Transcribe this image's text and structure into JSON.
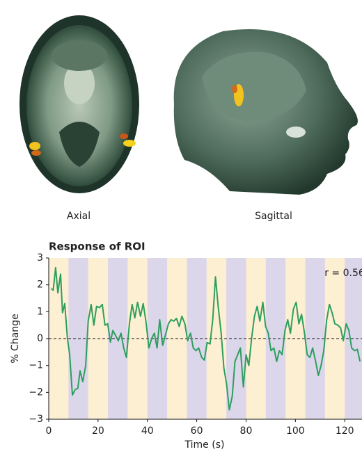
{
  "images": [
    {
      "label": "Axial"
    },
    {
      "label": "Sagittal"
    }
  ],
  "chart_data": {
    "type": "line",
    "title": "Response of ROI",
    "xlabel": "Time (s)",
    "ylabel": "% Change",
    "annotation": "r = 0.56",
    "xlim": [
      0,
      127
    ],
    "xticks": [
      0,
      20,
      40,
      60,
      80,
      100,
      120
    ],
    "ylim": [
      -3,
      3
    ],
    "yticks": [
      {
        "value": -3,
        "label": "−3"
      },
      {
        "value": -2,
        "label": "−2"
      },
      {
        "value": -1,
        "label": "−1"
      },
      0,
      1,
      2,
      3
    ],
    "reference_line": 0,
    "background_color": "#fcefd2",
    "blocks": [
      [
        8,
        16
      ],
      [
        24,
        32
      ],
      [
        40,
        48
      ],
      [
        56,
        64
      ],
      [
        72,
        80
      ],
      [
        88,
        96
      ],
      [
        104,
        112
      ],
      [
        120,
        127
      ]
    ],
    "block_color": "#dcd6ea",
    "series": [
      {
        "name": "ROI",
        "color": "#2e9e5e",
        "x": [
          1,
          1.8,
          2.8,
          3.7,
          4.8,
          5.6,
          6.5,
          7.6,
          8.5,
          9.6,
          10.7,
          11.8,
          12.7,
          13.8,
          15,
          16,
          17.2,
          18.3,
          19.4,
          20.6,
          21.7,
          22.8,
          23.9,
          25,
          26,
          27,
          28.2,
          29.3,
          30.4,
          31.5,
          32.7,
          33.8,
          34.9,
          36,
          37.2,
          38.3,
          39.4,
          40.6,
          41.7,
          42.8,
          43.9,
          45,
          46.2,
          47.3,
          48.5,
          49.6,
          50.7,
          51.8,
          52.9,
          54,
          55.2,
          56.3,
          57.5,
          58.6,
          59.7,
          60.8,
          62,
          63.1,
          64.2,
          65.4,
          66.5,
          67.6,
          68.7,
          69.9,
          71,
          72.1,
          73.2,
          74.4,
          75.5,
          76.6,
          77.7,
          78.9,
          80,
          81.1,
          82.3,
          83.4,
          84.5,
          85.6,
          86.8,
          87.9,
          89,
          90.1,
          91.3,
          92.4,
          93.5,
          94.6,
          95.8,
          96.9,
          98,
          99.2,
          100.3,
          101.4,
          102.5,
          103.7,
          104.8,
          105.9,
          107,
          108.2,
          109.3,
          110.4,
          111.5,
          112.7,
          113.8,
          114.9,
          116,
          117.2,
          118.3,
          119.4,
          120.6,
          121.7,
          122.8,
          124,
          125.1,
          126.2
        ],
        "values": [
          1.86,
          1.8,
          2.64,
          1.7,
          2.4,
          0.96,
          1.3,
          0,
          -0.6,
          -2.1,
          -1.9,
          -1.85,
          -1.2,
          -1.6,
          -1.0,
          0.65,
          1.27,
          0.5,
          1.2,
          1.15,
          1.27,
          0.5,
          0.55,
          -0.13,
          0.3,
          0.13,
          -0.08,
          0.2,
          -0.35,
          -0.7,
          0.55,
          1.27,
          0.77,
          1.35,
          0.83,
          1.3,
          0.65,
          -0.35,
          0,
          0.2,
          -0.35,
          0.7,
          -0.25,
          0.13,
          0.55,
          0.7,
          0.65,
          0.75,
          0.45,
          0.83,
          0.55,
          -0.08,
          0.2,
          -0.35,
          -0.45,
          -0.35,
          -0.7,
          -0.8,
          -0.15,
          -0.2,
          0.7,
          2.3,
          1.2,
          0.2,
          -1.1,
          -1.7,
          -2.65,
          -2.15,
          -0.85,
          -0.6,
          -0.35,
          -1.8,
          -0.6,
          -1.0,
          0.05,
          0.83,
          1.2,
          0.65,
          1.35,
          0.45,
          0.2,
          -0.45,
          -0.35,
          -0.85,
          -0.45,
          -0.6,
          0.3,
          0.7,
          0.2,
          1.1,
          1.35,
          0.55,
          0.9,
          0.2,
          -0.6,
          -0.7,
          -0.35,
          -0.85,
          -1.37,
          -1.0,
          -0.45,
          0.7,
          1.27,
          0.96,
          0.55,
          0.5,
          0.4,
          -0.08,
          0.55,
          0.3,
          -0.35,
          -0.45,
          -0.4,
          -0.85
        ]
      }
    ]
  }
}
